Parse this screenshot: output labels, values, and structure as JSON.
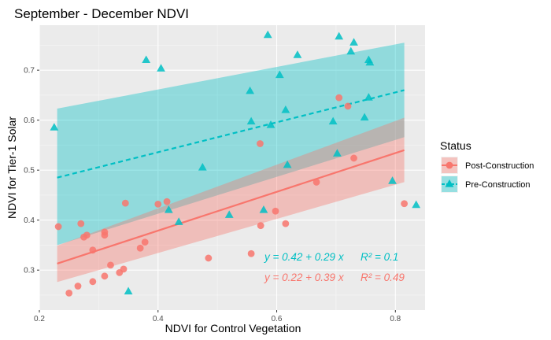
{
  "chart_data": {
    "type": "scatter",
    "title": "September - December NDVI",
    "xlabel": "NDVI for Control Vegetation",
    "ylabel": "NDVI for Tier-1 Solar",
    "xlim": [
      0.2,
      0.85
    ],
    "ylim": [
      0.22,
      0.79
    ],
    "x_ticks": [
      "0.2",
      "0.4",
      "0.6",
      "0.8"
    ],
    "y_ticks": [
      "0.3",
      "0.4",
      "0.5",
      "0.6",
      "0.7"
    ],
    "grid": true,
    "legend": {
      "title": "Status",
      "placement": "right",
      "entries": [
        "Post-Construction",
        "Pre-Construction"
      ]
    },
    "series": [
      {
        "name": "Post-Construction",
        "color": "#F8766D",
        "marker": "circle",
        "points": [
          [
            0.232,
            0.387
          ],
          [
            0.25,
            0.254
          ],
          [
            0.265,
            0.268
          ],
          [
            0.27,
            0.393
          ],
          [
            0.275,
            0.366
          ],
          [
            0.28,
            0.37
          ],
          [
            0.29,
            0.34
          ],
          [
            0.29,
            0.277
          ],
          [
            0.31,
            0.376
          ],
          [
            0.31,
            0.37
          ],
          [
            0.31,
            0.288
          ],
          [
            0.32,
            0.31
          ],
          [
            0.335,
            0.295
          ],
          [
            0.342,
            0.302
          ],
          [
            0.345,
            0.434
          ],
          [
            0.37,
            0.344
          ],
          [
            0.378,
            0.356
          ],
          [
            0.4,
            0.432
          ],
          [
            0.415,
            0.437
          ],
          [
            0.485,
            0.324
          ],
          [
            0.557,
            0.333
          ],
          [
            0.572,
            0.553
          ],
          [
            0.573,
            0.389
          ],
          [
            0.598,
            0.418
          ],
          [
            0.615,
            0.393
          ],
          [
            0.667,
            0.476
          ],
          [
            0.705,
            0.645
          ],
          [
            0.72,
            0.628
          ],
          [
            0.73,
            0.524
          ],
          [
            0.815,
            0.433
          ]
        ],
        "fit_line": {
          "x": [
            0.23,
            0.815
          ],
          "y": [
            0.313,
            0.54
          ]
        },
        "ci_band": {
          "x": [
            0.23,
            0.815
          ],
          "upper": [
            0.349,
            0.605
          ],
          "lower": [
            0.276,
            0.476
          ]
        },
        "equation": "y = 0.22 + 0.39 x",
        "r2": "R² = 0.49"
      },
      {
        "name": "Pre-Construction",
        "color": "#00BFC4",
        "marker": "triangle",
        "points": [
          [
            0.225,
            0.585
          ],
          [
            0.35,
            0.257
          ],
          [
            0.38,
            0.72
          ],
          [
            0.405,
            0.703
          ],
          [
            0.418,
            0.42
          ],
          [
            0.435,
            0.396
          ],
          [
            0.475,
            0.505
          ],
          [
            0.52,
            0.41
          ],
          [
            0.555,
            0.658
          ],
          [
            0.557,
            0.597
          ],
          [
            0.578,
            0.42
          ],
          [
            0.585,
            0.77
          ],
          [
            0.59,
            0.59
          ],
          [
            0.605,
            0.69
          ],
          [
            0.615,
            0.62
          ],
          [
            0.618,
            0.51
          ],
          [
            0.635,
            0.73
          ],
          [
            0.695,
            0.597
          ],
          [
            0.702,
            0.533
          ],
          [
            0.705,
            0.767
          ],
          [
            0.725,
            0.737
          ],
          [
            0.73,
            0.755
          ],
          [
            0.748,
            0.605
          ],
          [
            0.755,
            0.72
          ],
          [
            0.755,
            0.645
          ],
          [
            0.757,
            0.715
          ],
          [
            0.795,
            0.478
          ],
          [
            0.835,
            0.43
          ]
        ],
        "fit_line": {
          "x": [
            0.23,
            0.815
          ],
          "y": [
            0.485,
            0.66
          ]
        },
        "ci_band": {
          "x": [
            0.23,
            0.815
          ],
          "upper": [
            0.623,
            0.755
          ],
          "lower": [
            0.35,
            0.566
          ]
        },
        "equation": "y = 0.42 + 0.29 x",
        "r2": "R² = 0.1"
      }
    ]
  }
}
